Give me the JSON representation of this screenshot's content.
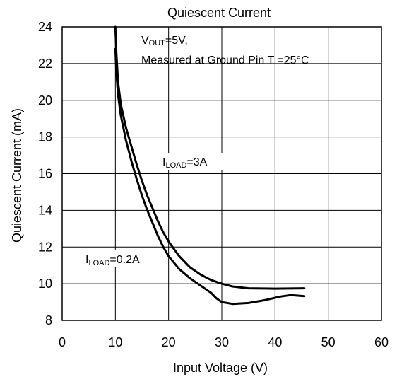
{
  "chart_data": {
    "type": "line",
    "title": "Quiescent Current",
    "xlabel": "Input Voltage (V)",
    "ylabel": "Quiescent Current (mA)",
    "xlim": [
      0,
      60
    ],
    "ylim": [
      8,
      24
    ],
    "xticks": [
      0,
      10,
      20,
      30,
      40,
      50,
      60
    ],
    "yticks": [
      8,
      10,
      12,
      14,
      16,
      18,
      20,
      22,
      24
    ],
    "grid": true,
    "annotations": {
      "vout_main": "V",
      "vout_sub": "OUT",
      "vout_rest": "=5V,",
      "measured": "Measured at Ground Pin T =25°C",
      "load_high_main": "I",
      "load_high_sub": "LOAD",
      "load_high_rest": "=3A",
      "load_low_main": "I",
      "load_low_sub": "LOAD",
      "load_low_rest": "=0.2A"
    },
    "series": [
      {
        "name": "ILOAD=3A",
        "points": [
          [
            10.0,
            24.0
          ],
          [
            10.2,
            22.5
          ],
          [
            10.5,
            21.0
          ],
          [
            11,
            19.8
          ],
          [
            12,
            18.5
          ],
          [
            13,
            17.5
          ],
          [
            14,
            16.5
          ],
          [
            15,
            15.6
          ],
          [
            16,
            14.8
          ],
          [
            17,
            14.1
          ],
          [
            18,
            13.4
          ],
          [
            19,
            12.8
          ],
          [
            20,
            12.3
          ],
          [
            22,
            11.5
          ],
          [
            24,
            10.9
          ],
          [
            26,
            10.5
          ],
          [
            28,
            10.2
          ],
          [
            30,
            10.0
          ],
          [
            32,
            9.85
          ],
          [
            35,
            9.75
          ],
          [
            40,
            9.73
          ],
          [
            45.5,
            9.75
          ]
        ]
      },
      {
        "name": "ILOAD=0.2A",
        "points": [
          [
            10.0,
            22.8
          ],
          [
            10.2,
            21.5
          ],
          [
            10.5,
            20.3
          ],
          [
            11,
            19.2
          ],
          [
            12,
            17.8
          ],
          [
            13,
            16.7
          ],
          [
            14,
            15.7
          ],
          [
            15,
            14.8
          ],
          [
            16,
            14.0
          ],
          [
            17,
            13.3
          ],
          [
            18,
            12.6
          ],
          [
            19,
            12.0
          ],
          [
            20,
            11.5
          ],
          [
            22,
            10.8
          ],
          [
            24,
            10.3
          ],
          [
            26,
            9.9
          ],
          [
            28,
            9.5
          ],
          [
            29,
            9.2
          ],
          [
            30,
            9.0
          ],
          [
            32,
            8.9
          ],
          [
            35,
            8.95
          ],
          [
            38,
            9.1
          ],
          [
            41,
            9.3
          ],
          [
            43,
            9.38
          ],
          [
            45.5,
            9.32
          ]
        ]
      }
    ]
  }
}
